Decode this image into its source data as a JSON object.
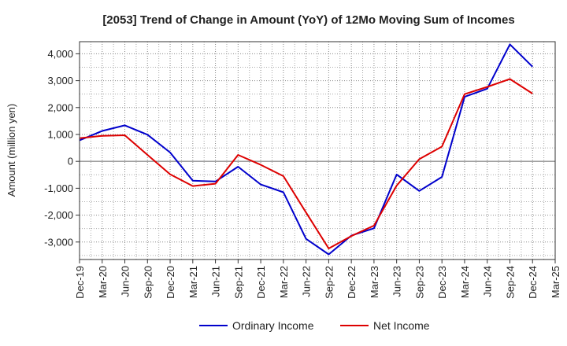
{
  "chart_data": {
    "type": "line",
    "title": "[2053]  Trend of Change in Amount (YoY) of 12Mo Moving Sum of Incomes",
    "xlabel": "",
    "ylabel": "Amount (million yen)",
    "ylim": [
      -3650,
      4450
    ],
    "yticks": [
      -3000,
      -2000,
      -1000,
      0,
      1000,
      2000,
      3000,
      4000
    ],
    "ytick_labels": [
      "-3,000",
      "-2,000",
      "-1,000",
      "0",
      "1,000",
      "2,000",
      "3,000",
      "4,000"
    ],
    "categories": [
      "Dec-19",
      "Mar-20",
      "Jun-20",
      "Sep-20",
      "Dec-20",
      "Mar-21",
      "Jun-21",
      "Sep-21",
      "Dec-21",
      "Mar-22",
      "Jun-22",
      "Sep-22",
      "Dec-22",
      "Mar-23",
      "Jun-23",
      "Sep-23",
      "Dec-23",
      "Mar-24",
      "Jun-24",
      "Sep-24",
      "Dec-24",
      "Mar-25"
    ],
    "grid": true,
    "legend_position": "bottom",
    "series": [
      {
        "name": "Ordinary Income",
        "color": "#0000cc",
        "values": [
          780,
          1130,
          1340,
          990,
          330,
          -720,
          -750,
          -200,
          -860,
          -1150,
          -2880,
          -3460,
          -2760,
          -2490,
          -490,
          -1100,
          -580,
          2400,
          2700,
          4350,
          3520,
          null
        ]
      },
      {
        "name": "Net Income",
        "color": "#dd0000",
        "values": [
          860,
          950,
          970,
          240,
          -480,
          -920,
          -830,
          240,
          -130,
          -550,
          -1900,
          -3240,
          -2780,
          -2390,
          -900,
          80,
          550,
          2500,
          2770,
          3060,
          2520,
          null
        ]
      }
    ]
  }
}
